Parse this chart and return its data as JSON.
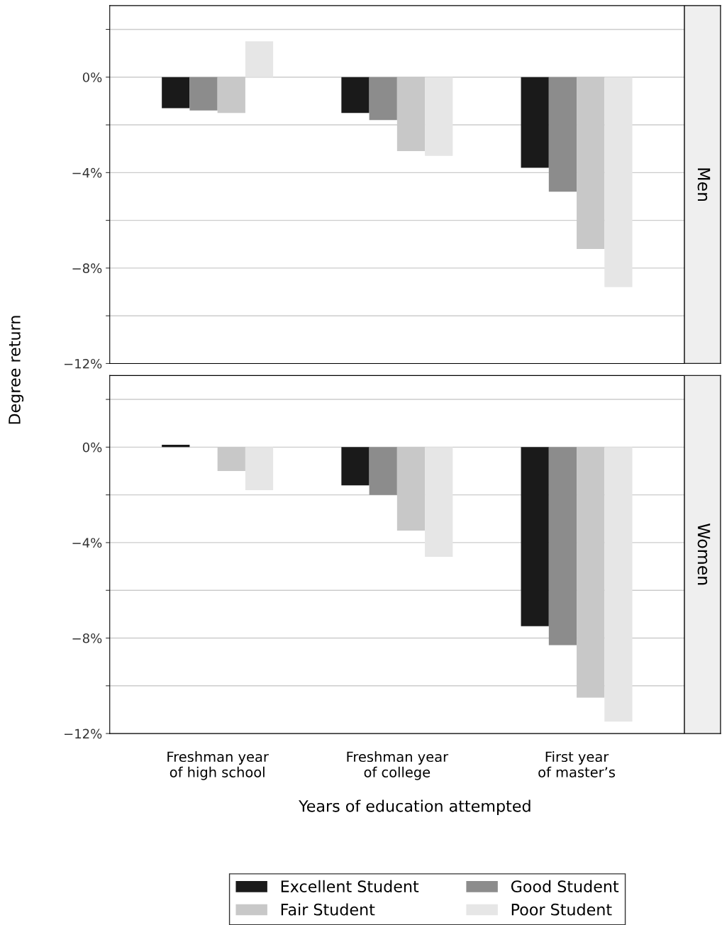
{
  "chart_data": [
    {
      "type": "bar",
      "title": "Men",
      "ylabel": "Degree return",
      "categories": [
        null,
        null,
        null
      ],
      "series": [
        {
          "color": "#1a1a1a",
          "values": [
            -1.3,
            -1.5,
            -3.8
          ]
        },
        {
          "color": "#8c8c8c",
          "values": [
            -1.4,
            -1.8,
            -4.8
          ]
        },
        {
          "color": "#c8c8c8",
          "values": [
            -1.5,
            -3.1,
            -7.2
          ]
        },
        {
          "color": "#e6e6e6",
          "values": [
            1.5,
            -3.3,
            -8.8
          ]
        }
      ],
      "ylim": [
        -12,
        3
      ],
      "yticks": [
        {
          "value": 2,
          "label": null
        },
        {
          "value": 0,
          "label": "0%"
        },
        {
          "value": -2,
          "label": null
        },
        {
          "value": -4,
          "label": "−4%"
        },
        {
          "value": -6,
          "label": null
        },
        {
          "value": -8,
          "label": "−8%"
        },
        {
          "value": -10,
          "label": null
        },
        {
          "value": -12,
          "label": "−12%"
        }
      ],
      "grid": "y",
      "tick_labels": "y",
      "legend": false
    },
    {
      "type": "bar",
      "title": "Women",
      "xlabel": "Years of education attempted",
      "categories": [
        "Freshman year\nof high school",
        "Freshman year\nof college",
        "First year\nof master’s"
      ],
      "series": [
        {
          "name": "Excellent Student",
          "color": "#1a1a1a",
          "values": [
            0.1,
            -1.6,
            -7.5
          ]
        },
        {
          "name": "Good Student",
          "color": "#8c8c8c",
          "values": [
            0.0,
            -2.0,
            -8.3
          ]
        },
        {
          "name": "Fair Student",
          "color": "#c8c8c8",
          "values": [
            -1.0,
            -3.5,
            -10.5
          ]
        },
        {
          "name": "Poor Student",
          "color": "#e6e6e6",
          "values": [
            -1.8,
            -4.6,
            -11.5
          ]
        }
      ],
      "ylim": [
        -12,
        3
      ],
      "yticks": [
        {
          "value": 2,
          "label": null
        },
        {
          "value": 0,
          "label": "0%"
        },
        {
          "value": -2,
          "label": null
        },
        {
          "value": -4,
          "label": "−4%"
        },
        {
          "value": -6,
          "label": null
        },
        {
          "value": -8,
          "label": "−8%"
        },
        {
          "value": -10,
          "label": null
        },
        {
          "value": -12,
          "label": "−12%"
        }
      ],
      "grid": "y",
      "legend": "bottom"
    }
  ]
}
